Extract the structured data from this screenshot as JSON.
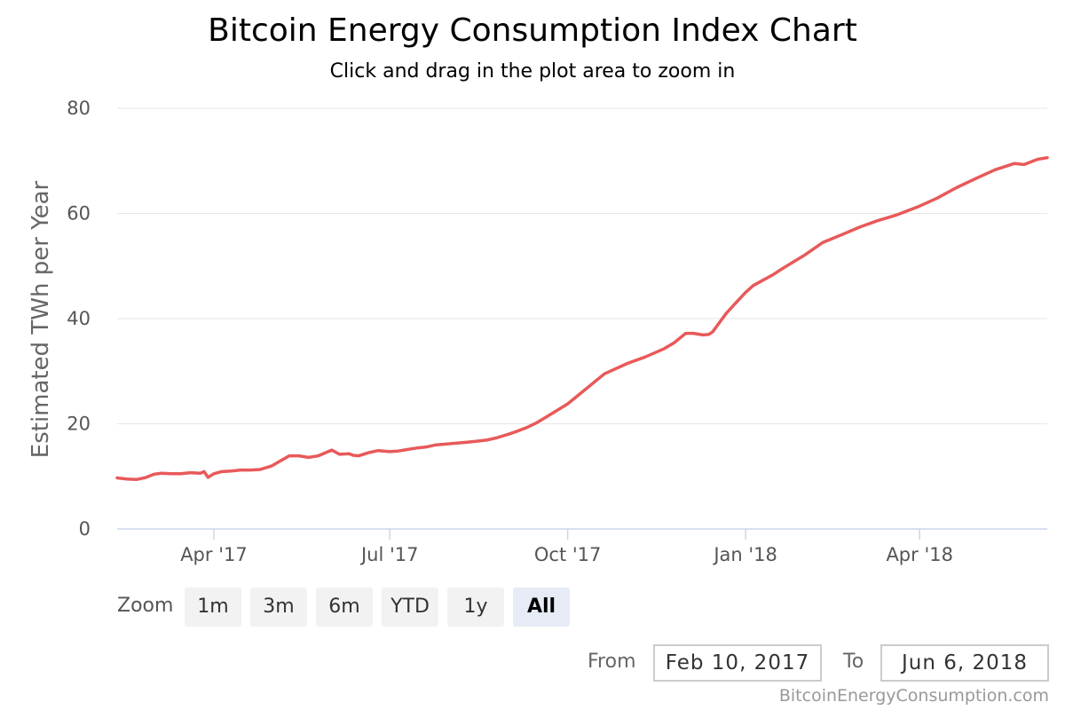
{
  "header": {
    "title": "Bitcoin Energy Consumption Index Chart",
    "subtitle": "Click and drag in the plot area to zoom in"
  },
  "colors": {
    "line": "#e8595a",
    "grid": "#e6e6e6",
    "axis": "#ccd6eb"
  },
  "zoom": {
    "label": "Zoom",
    "buttons": [
      "1m",
      "3m",
      "6m",
      "YTD",
      "1y",
      "All"
    ],
    "active": "All"
  },
  "range": {
    "from_label": "From",
    "from_value": "Feb 10, 2017",
    "to_label": "To",
    "to_value": "Jun 6, 2018"
  },
  "credit": "BitcoinEnergyConsumption.com",
  "chart_data": {
    "type": "line",
    "title": "Bitcoin Energy Consumption Index Chart",
    "subtitle": "Click and drag in the plot area to zoom in",
    "ylabel": "Estimated TWh per Year",
    "xlabel": "",
    "ylim": [
      0,
      80
    ],
    "xlim": [
      "2017-02-10",
      "2018-06-06"
    ],
    "y_ticks": [
      0,
      20,
      40,
      60,
      80
    ],
    "x_ticks": [
      {
        "date": "2017-04-01",
        "label": "Apr '17"
      },
      {
        "date": "2017-07-01",
        "label": "Jul '17"
      },
      {
        "date": "2017-10-01",
        "label": "Oct '17"
      },
      {
        "date": "2018-01-01",
        "label": "Jan '18"
      },
      {
        "date": "2018-04-01",
        "label": "Apr '18"
      }
    ],
    "grid": true,
    "legend": "none",
    "series": [
      {
        "x": [
          "2017-02-10",
          "2017-02-15",
          "2017-02-20",
          "2017-02-25",
          "2017-03-01",
          "2017-03-05",
          "2017-03-10",
          "2017-03-15",
          "2017-03-20",
          "2017-03-25",
          "2017-03-27",
          "2017-03-29",
          "2017-04-01",
          "2017-04-05",
          "2017-04-10",
          "2017-04-15",
          "2017-04-20",
          "2017-04-25",
          "2017-05-01",
          "2017-05-10",
          "2017-05-15",
          "2017-05-20",
          "2017-05-25",
          "2017-06-01",
          "2017-06-05",
          "2017-06-10",
          "2017-06-12",
          "2017-06-15",
          "2017-06-20",
          "2017-06-25",
          "2017-07-01",
          "2017-07-05",
          "2017-07-10",
          "2017-07-15",
          "2017-07-20",
          "2017-07-25",
          "2017-08-01",
          "2017-08-10",
          "2017-08-15",
          "2017-08-20",
          "2017-08-25",
          "2017-09-01",
          "2017-09-05",
          "2017-09-10",
          "2017-09-15",
          "2017-09-20",
          "2017-10-01",
          "2017-10-10",
          "2017-10-20",
          "2017-11-01",
          "2017-11-10",
          "2017-11-20",
          "2017-11-25",
          "2017-12-01",
          "2017-12-05",
          "2017-12-10",
          "2017-12-13",
          "2017-12-15",
          "2017-12-18",
          "2017-12-22",
          "2017-12-27",
          "2018-01-01",
          "2018-01-05",
          "2018-01-10",
          "2018-01-15",
          "2018-01-20",
          "2018-02-01",
          "2018-02-10",
          "2018-02-20",
          "2018-03-01",
          "2018-03-10",
          "2018-03-20",
          "2018-04-01",
          "2018-04-10",
          "2018-04-20",
          "2018-05-01",
          "2018-05-10",
          "2018-05-20",
          "2018-05-25",
          "2018-06-01",
          "2018-06-06"
        ],
        "values": [
          9.7,
          9.5,
          9.4,
          9.8,
          10.4,
          10.6,
          10.5,
          10.5,
          10.7,
          10.6,
          10.9,
          9.8,
          10.5,
          10.9,
          11.0,
          11.2,
          11.2,
          11.3,
          12.0,
          13.9,
          13.9,
          13.6,
          13.9,
          15.0,
          14.2,
          14.3,
          14.0,
          13.9,
          14.5,
          14.9,
          14.7,
          14.8,
          15.1,
          15.4,
          15.6,
          16.0,
          16.2,
          16.5,
          16.7,
          16.9,
          17.3,
          18.1,
          18.6,
          19.3,
          20.2,
          21.3,
          23.8,
          26.5,
          29.5,
          31.5,
          32.7,
          34.3,
          35.4,
          37.2,
          37.2,
          36.9,
          37.0,
          37.5,
          39.0,
          41.0,
          43.0,
          45.0,
          46.3,
          47.3,
          48.3,
          49.5,
          52.2,
          54.5,
          56.0,
          57.4,
          58.6,
          59.7,
          61.4,
          62.9,
          64.9,
          66.8,
          68.3,
          69.5,
          69.3,
          70.3,
          70.6
        ]
      }
    ]
  }
}
